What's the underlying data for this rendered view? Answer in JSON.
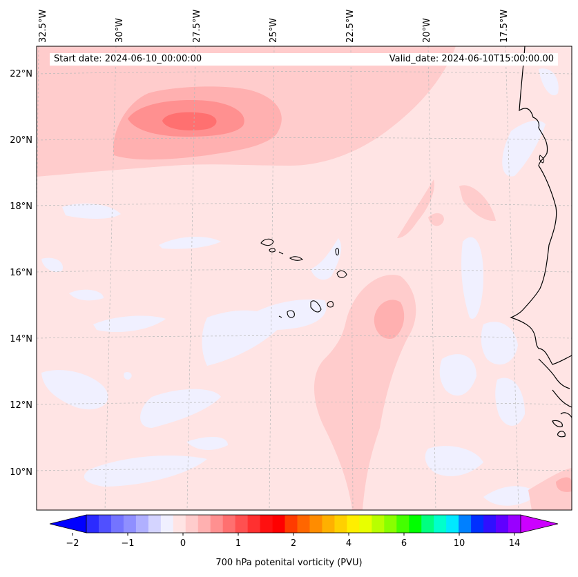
{
  "header": {
    "start_date": "Start date: 2024-06-10_00:00:00",
    "valid_date": "Valid_date: 2024-06-10T15:00:00.00"
  },
  "map": {
    "lon_labels": [
      "32.5°W",
      "30°W",
      "27.5°W",
      "25°W",
      "22.5°W",
      "20°W",
      "17.5°W"
    ],
    "lat_labels": [
      "22°N",
      "20°N",
      "18°N",
      "16°N",
      "14°N",
      "12°N",
      "10°N"
    ]
  },
  "colorbar": {
    "label": "700 hPa potenital vorticity (PVU)",
    "tick_labels": [
      "−2",
      "−1",
      "0",
      "1",
      "2",
      "4",
      "6",
      "10",
      "14"
    ],
    "colors": [
      "#0000ff",
      "#2b2bff",
      "#5050ff",
      "#7474ff",
      "#8f8fff",
      "#b0b0ff",
      "#d4d4ff",
      "#f0f0ff",
      "#ffe4e4",
      "#ffcccc",
      "#ffb0b0",
      "#ff9090",
      "#ff7070",
      "#ff5050",
      "#ff3030",
      "#ff1010",
      "#ff0000",
      "#ff3b00",
      "#ff6600",
      "#ff8c00",
      "#ffb000",
      "#ffd000",
      "#ffee00",
      "#e8ff00",
      "#b8ff00",
      "#88ff00",
      "#44ff00",
      "#00ff00",
      "#00ff80",
      "#00ffcc",
      "#00e8ff",
      "#0080ff",
      "#0030ff",
      "#3010ff",
      "#6000ff",
      "#9900ff",
      "#cc00ff"
    ]
  },
  "field_colors": {
    "light_pink": "#ffe4e4",
    "pink": "#ffcccc",
    "medium_pink": "#ffb0b0",
    "dark_pink": "#ff9090",
    "core": "#ff7070",
    "lavender": "#f0f0ff"
  }
}
